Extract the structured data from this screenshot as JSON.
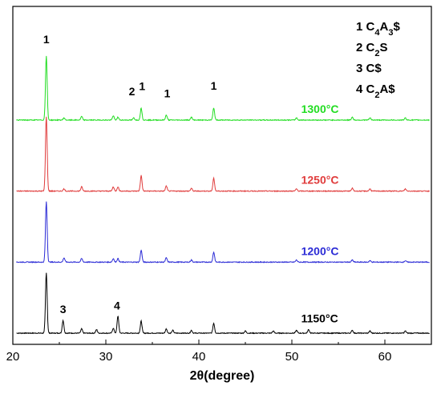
{
  "chart_data": {
    "type": "line",
    "xlabel": "2θ(degree)",
    "xlim": [
      20,
      65
    ],
    "ylim": [
      0,
      4.6
    ],
    "x_ticks": [
      "20",
      "30",
      "40",
      "50",
      "60"
    ],
    "legend": [
      {
        "num": "1",
        "phase": "C",
        "sub": "4",
        "phase2": "A",
        "sub2": "3",
        "phase3": "$"
      },
      {
        "num": "2",
        "phase": "C",
        "sub": "2",
        "phase2": "S",
        "sub2": "",
        "phase3": ""
      },
      {
        "num": "3",
        "phase": "C$",
        "sub": "",
        "phase2": "",
        "sub2": "",
        "phase3": ""
      },
      {
        "num": "4",
        "phase": "C",
        "sub": "2",
        "phase2": "A$",
        "sub2": "",
        "phase3": ""
      }
    ],
    "series": [
      {
        "name": "1150°C",
        "color": "#000000",
        "offset": 0.0,
        "peaks": [
          {
            "x": 23.6,
            "h": 0.85
          },
          {
            "x": 25.4,
            "h": 0.18
          },
          {
            "x": 27.4,
            "h": 0.06
          },
          {
            "x": 29.0,
            "h": 0.05
          },
          {
            "x": 30.8,
            "h": 0.07
          },
          {
            "x": 31.3,
            "h": 0.24
          },
          {
            "x": 33.8,
            "h": 0.17
          },
          {
            "x": 36.5,
            "h": 0.06
          },
          {
            "x": 37.2,
            "h": 0.04
          },
          {
            "x": 39.2,
            "h": 0.04
          },
          {
            "x": 41.6,
            "h": 0.14
          },
          {
            "x": 45.0,
            "h": 0.03
          },
          {
            "x": 48.0,
            "h": 0.03
          },
          {
            "x": 50.5,
            "h": 0.04
          },
          {
            "x": 51.8,
            "h": 0.05
          },
          {
            "x": 56.5,
            "h": 0.04
          },
          {
            "x": 58.4,
            "h": 0.03
          },
          {
            "x": 62.2,
            "h": 0.03
          }
        ]
      },
      {
        "name": "1200°C",
        "color": "#2b2bd6",
        "offset": 1.0,
        "peaks": [
          {
            "x": 23.6,
            "h": 0.85
          },
          {
            "x": 25.5,
            "h": 0.06
          },
          {
            "x": 27.4,
            "h": 0.05
          },
          {
            "x": 30.8,
            "h": 0.05
          },
          {
            "x": 31.3,
            "h": 0.05
          },
          {
            "x": 33.8,
            "h": 0.17
          },
          {
            "x": 36.5,
            "h": 0.06
          },
          {
            "x": 39.2,
            "h": 0.03
          },
          {
            "x": 41.6,
            "h": 0.14
          },
          {
            "x": 50.5,
            "h": 0.03
          },
          {
            "x": 56.5,
            "h": 0.03
          },
          {
            "x": 58.4,
            "h": 0.02
          },
          {
            "x": 62.2,
            "h": 0.02
          }
        ]
      },
      {
        "name": "1250°C",
        "color": "#e03c3c",
        "offset": 2.0,
        "peaks": [
          {
            "x": 23.6,
            "h": 1.05
          },
          {
            "x": 25.5,
            "h": 0.03
          },
          {
            "x": 27.4,
            "h": 0.06
          },
          {
            "x": 30.8,
            "h": 0.06
          },
          {
            "x": 31.3,
            "h": 0.06
          },
          {
            "x": 33.8,
            "h": 0.22
          },
          {
            "x": 36.5,
            "h": 0.07
          },
          {
            "x": 39.2,
            "h": 0.04
          },
          {
            "x": 41.6,
            "h": 0.18
          },
          {
            "x": 50.5,
            "h": 0.03
          },
          {
            "x": 56.5,
            "h": 0.04
          },
          {
            "x": 58.4,
            "h": 0.03
          },
          {
            "x": 62.2,
            "h": 0.03
          }
        ]
      },
      {
        "name": "1300°C",
        "color": "#22dd22",
        "offset": 3.0,
        "peaks": [
          {
            "x": 23.6,
            "h": 0.9
          },
          {
            "x": 25.5,
            "h": 0.03
          },
          {
            "x": 27.4,
            "h": 0.05
          },
          {
            "x": 30.8,
            "h": 0.06
          },
          {
            "x": 31.3,
            "h": 0.04
          },
          {
            "x": 33.0,
            "h": 0.03
          },
          {
            "x": 33.8,
            "h": 0.17
          },
          {
            "x": 36.5,
            "h": 0.07
          },
          {
            "x": 39.2,
            "h": 0.04
          },
          {
            "x": 41.6,
            "h": 0.17
          },
          {
            "x": 50.5,
            "h": 0.03
          },
          {
            "x": 56.5,
            "h": 0.04
          },
          {
            "x": 58.4,
            "h": 0.03
          },
          {
            "x": 62.2,
            "h": 0.03
          }
        ]
      }
    ],
    "peak_labels": [
      {
        "text": "1",
        "x": 23.6,
        "y": 4.08
      },
      {
        "text": "2",
        "x": 32.8,
        "y": 3.35
      },
      {
        "text": "1",
        "x": 33.9,
        "y": 3.42
      },
      {
        "text": "1",
        "x": 36.6,
        "y": 3.32
      },
      {
        "text": "1",
        "x": 41.6,
        "y": 3.43
      },
      {
        "text": "3",
        "x": 25.4,
        "y": 0.28
      },
      {
        "text": "4",
        "x": 31.2,
        "y": 0.33
      }
    ],
    "temp_labels": [
      {
        "text": "1300°C",
        "x": 51.0,
        "y": 3.1,
        "color": "#22dd22"
      },
      {
        "text": "1250°C",
        "x": 51.0,
        "y": 2.1,
        "color": "#e03c3c"
      },
      {
        "text": "1200°C",
        "x": 51.0,
        "y": 1.1,
        "color": "#2b2bd6"
      },
      {
        "text": "1150°C",
        "x": 51.0,
        "y": 0.15,
        "color": "#000000"
      }
    ]
  }
}
